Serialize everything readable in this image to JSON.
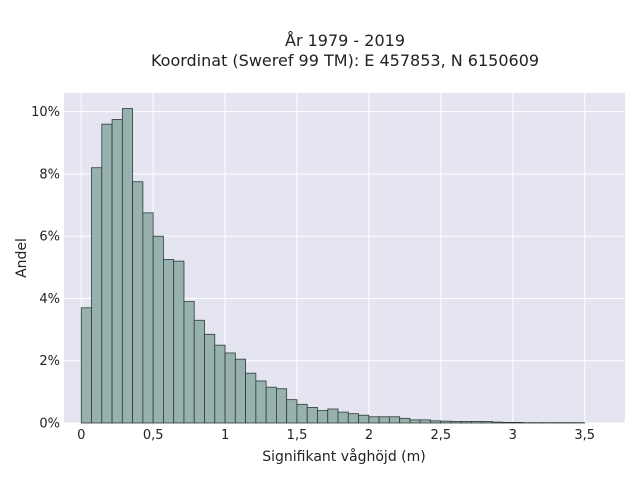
{
  "chart_data": {
    "type": "bar",
    "title": "År 1979 - 2019",
    "subtitle": "Koordinat (Sweref 99 TM): E 457853, N 6150609",
    "xlabel": "Signifikant våghöjd (m)",
    "ylabel": "Andel",
    "xlim": [
      -0.12,
      3.78
    ],
    "ylim": [
      0,
      10.6
    ],
    "grid": true,
    "x_ticks": [
      {
        "value": 0,
        "label": "0"
      },
      {
        "value": 0.5,
        "label": "0,5"
      },
      {
        "value": 1,
        "label": "1"
      },
      {
        "value": 1.5,
        "label": "1,5"
      },
      {
        "value": 2,
        "label": "2"
      },
      {
        "value": 2.5,
        "label": "2,5"
      },
      {
        "value": 3,
        "label": "3"
      },
      {
        "value": 3.5,
        "label": "3,5"
      }
    ],
    "y_ticks": [
      {
        "value": 0,
        "label": "0%"
      },
      {
        "value": 2,
        "label": "2%"
      },
      {
        "value": 4,
        "label": "4%"
      },
      {
        "value": 6,
        "label": "6%"
      },
      {
        "value": 8,
        "label": "8%"
      },
      {
        "value": 10,
        "label": "10%"
      }
    ],
    "bin_width": 0.0714,
    "bin_start": 0,
    "values": [
      3.7,
      8.2,
      9.6,
      9.75,
      10.1,
      7.75,
      6.75,
      6.0,
      5.25,
      5.2,
      3.9,
      3.3,
      2.85,
      2.5,
      2.25,
      2.05,
      1.6,
      1.35,
      1.15,
      1.1,
      0.75,
      0.6,
      0.5,
      0.4,
      0.45,
      0.35,
      0.3,
      0.25,
      0.2,
      0.2,
      0.2,
      0.15,
      0.1,
      0.1,
      0.07,
      0.06,
      0.05,
      0.05,
      0.05,
      0.05,
      0.03,
      0.02,
      0.02,
      0.01,
      0.01,
      0.01,
      0.01,
      0.01,
      0.01
    ],
    "colors": {
      "background": "#e5e5f1",
      "bar_fill": "#97b2ae",
      "bar_stroke": "#2f3a36",
      "grid": "#ffffff"
    }
  }
}
